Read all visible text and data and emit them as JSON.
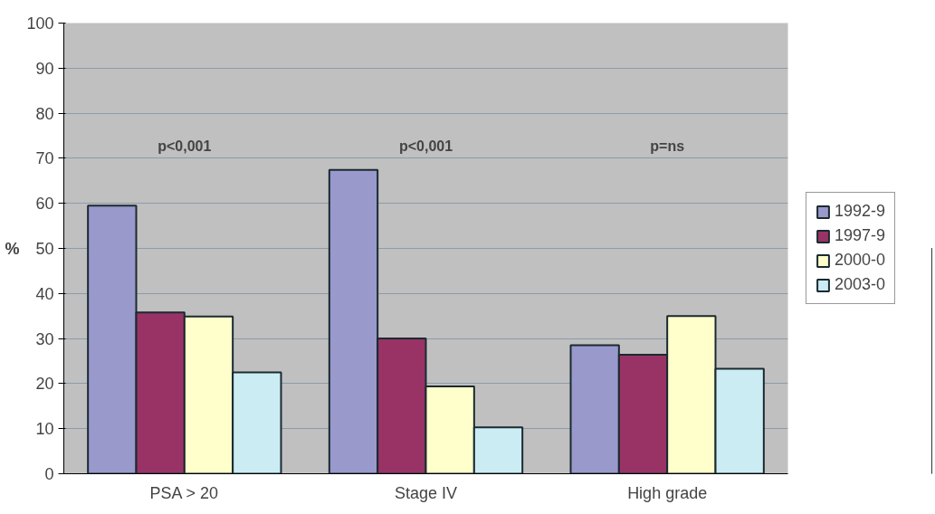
{
  "chart_data": {
    "type": "bar",
    "ylabel": "%",
    "categories": [
      "PSA > 20",
      "Stage IV",
      "High grade"
    ],
    "series": [
      {
        "name": "1992-9",
        "color": "#9999cc",
        "values": [
          59.5,
          67.4,
          28.5
        ]
      },
      {
        "name": "1997-9",
        "color": "#993366",
        "values": [
          35.8,
          30,
          26.4
        ]
      },
      {
        "name": "2000-0",
        "color": "#ffffcc",
        "values": [
          34.9,
          19.4,
          35
        ]
      },
      {
        "name": "2003-0",
        "color": "#ccecf4",
        "values": [
          22.5,
          10.3,
          23.3
        ]
      }
    ],
    "ylim": [
      0,
      100
    ],
    "yticks": [
      0,
      10,
      20,
      30,
      40,
      50,
      60,
      70,
      80,
      90,
      100
    ],
    "grid": "y",
    "legend": "right",
    "annotations": [
      "p<0,001",
      "p<0,001",
      "p=ns"
    ]
  }
}
